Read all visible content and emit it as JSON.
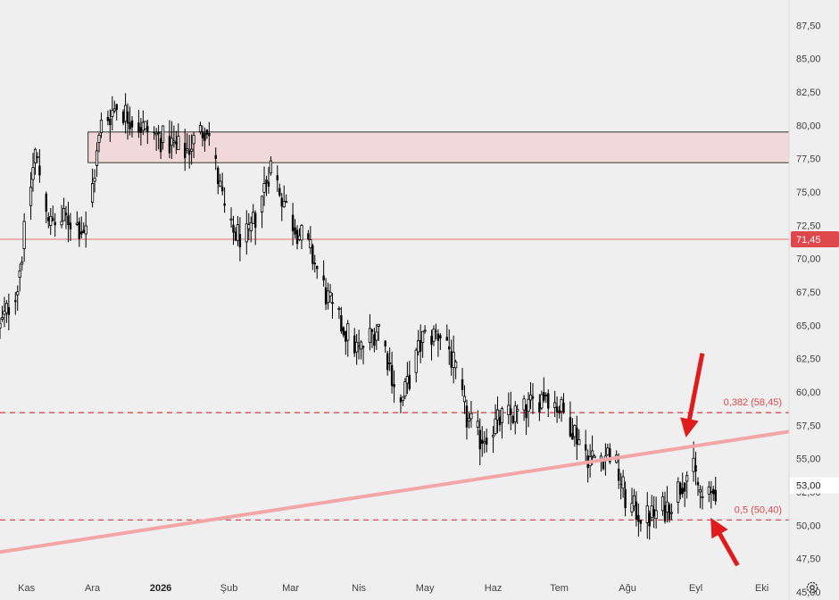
{
  "chart_data": {
    "type": "candlestick",
    "y_axis": {
      "ylim": [
        44.4,
        89.4
      ],
      "ticks": [
        "87,50",
        "85,00",
        "82,50",
        "80,00",
        "77,50",
        "75,00",
        "72,50",
        "70,00",
        "67,50",
        "65,00",
        "62,50",
        "60,00",
        "57,50",
        "55,00",
        "52,50",
        "50,00",
        "47,50",
        "45,00"
      ],
      "tick_values": [
        87.5,
        85,
        82.5,
        80,
        77.5,
        75,
        72.5,
        70,
        67.5,
        65,
        62.5,
        60,
        57.5,
        55,
        52.5,
        50,
        47.5,
        45
      ]
    },
    "x_axis": {
      "labels": [
        "Kas",
        "Ara",
        "2026",
        "Şub",
        "Mar",
        "Nis",
        "May",
        "Haz",
        "Tem",
        "Ağu",
        "Eyl",
        "Eki"
      ],
      "label_dates": [
        "2025-11-01",
        "2025-12-01",
        "2026-01-01",
        "2026-02-01",
        "2026-03-01",
        "2026-04-01",
        "2026-05-01",
        "2026-06-01",
        "2026-07-01",
        "2026-08-01",
        "2026-09-01",
        "2026-10-01"
      ],
      "range": [
        "2025-10-20",
        "2026-11-01"
      ]
    },
    "price_path": [
      [
        "2025-10-20",
        64.8
      ],
      [
        "2025-10-28",
        68.0
      ],
      [
        "2025-11-05",
        78.0
      ],
      [
        "2025-11-12",
        72.5
      ],
      [
        "2025-11-20",
        73.0
      ],
      [
        "2025-11-28",
        72.0
      ],
      [
        "2025-12-05",
        80.0
      ],
      [
        "2025-12-12",
        81.5
      ],
      [
        "2025-12-22",
        80.0
      ],
      [
        "2026-01-01",
        79.0
      ],
      [
        "2026-01-12",
        78.0
      ],
      [
        "2026-01-22",
        80.0
      ],
      [
        "2026-02-01",
        72.0
      ],
      [
        "2026-02-10",
        71.5
      ],
      [
        "2026-02-20",
        77.0
      ],
      [
        "2026-03-01",
        73.0
      ],
      [
        "2026-03-10",
        70.5
      ],
      [
        "2026-03-20",
        66.0
      ],
      [
        "2026-04-01",
        63.0
      ],
      [
        "2026-04-10",
        65.0
      ],
      [
        "2026-04-20",
        59.0
      ],
      [
        "2026-04-30",
        64.0
      ],
      [
        "2026-05-10",
        64.5
      ],
      [
        "2026-05-20",
        58.0
      ],
      [
        "2026-05-26",
        56.5
      ],
      [
        "2026-06-05",
        58.0
      ],
      [
        "2026-06-15",
        58.5
      ],
      [
        "2026-06-25",
        60.0
      ],
      [
        "2026-07-05",
        58.0
      ],
      [
        "2026-07-15",
        55.0
      ],
      [
        "2026-07-25",
        55.5
      ],
      [
        "2026-08-01",
        51.5
      ],
      [
        "2026-08-10",
        50.5
      ],
      [
        "2026-08-20",
        51.5
      ],
      [
        "2026-08-30",
        54.5
      ],
      [
        "2026-09-05",
        51.5
      ],
      [
        "2026-09-10",
        52.8
      ]
    ],
    "resistance_zone": {
      "low": 77.2,
      "high": 79.5
    },
    "horizontal_line": {
      "value": 71.45,
      "label": "71,45"
    },
    "fib_levels": [
      {
        "value": 58.45,
        "label": "0,382 (58,45)"
      },
      {
        "value": 50.4,
        "label": "0,5 (50,40)"
      }
    ],
    "trendline": {
      "start": [
        "2025-10-20",
        48.0
      ],
      "end": [
        "2026-11-01",
        57.5
      ]
    },
    "arrows": [
      {
        "name": "top-arrow",
        "from": [
          "2026-09-04",
          62.9
        ],
        "to": [
          "2026-08-28",
          57.0
        ]
      },
      {
        "name": "bottom-arrow",
        "from": [
          "2026-09-20",
          47.0
        ],
        "to": [
          "2026-09-09",
          50.2
        ]
      }
    ],
    "last_price": {
      "value": 53.0,
      "label": "53,00"
    },
    "colors": {
      "background": "#efefef",
      "candle": "#000000",
      "zone_fill": "#f1d9d9",
      "zone_border": "#333333",
      "line_red": "#e57373",
      "trend": "#f2a6a6",
      "fib": "#e0474c",
      "arrow": "#e01b1b",
      "tag_bg": "#e0474c"
    }
  }
}
